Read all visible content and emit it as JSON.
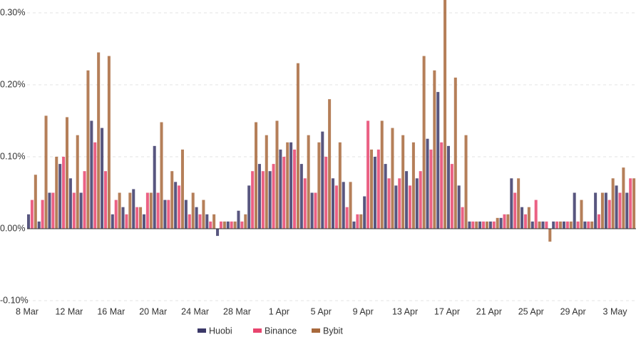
{
  "chart_data": {
    "type": "bar",
    "categories": [
      "8 Mar",
      null,
      null,
      null,
      "12 Mar",
      null,
      null,
      null,
      "16 Mar",
      null,
      null,
      null,
      "20 Mar",
      null,
      null,
      null,
      "24 Mar",
      null,
      null,
      null,
      "28 Mar",
      null,
      null,
      null,
      "1 Apr",
      null,
      null,
      null,
      "5 Apr",
      null,
      null,
      null,
      "9 Apr",
      null,
      null,
      null,
      "13 Apr",
      null,
      null,
      null,
      "17 Apr",
      null,
      null,
      null,
      "21 Apr",
      null,
      null,
      null,
      "25 Apr",
      null,
      null,
      null,
      "29 Apr",
      null,
      null,
      null,
      "3 May",
      null
    ],
    "series": [
      {
        "name": "Huobi",
        "color": "#3b3868",
        "values": [
          0.02,
          0.01,
          0.05,
          0.09,
          0.07,
          0.05,
          0.15,
          0.14,
          0.02,
          0.03,
          0.055,
          0.02,
          0.115,
          0.04,
          0.065,
          0.04,
          0.03,
          0.02,
          -0.01,
          0.01,
          0.025,
          0.06,
          0.09,
          0.08,
          0.11,
          0.12,
          0.09,
          0.05,
          0.135,
          0.07,
          0.065,
          0.01,
          0.045,
          0.1,
          0.09,
          0.06,
          0.08,
          0.07,
          0.125,
          0.19,
          0.115,
          0.06,
          0.01,
          0.01,
          0.01,
          0.015,
          0.07,
          0.03,
          0.01,
          0.01,
          0.01,
          0.01,
          0.05,
          0.01,
          0.05,
          0.05,
          0.06,
          0.05
        ]
      },
      {
        "name": "Binance",
        "color": "#e8456e",
        "values": [
          0.04,
          0.04,
          0.05,
          0.1,
          0.05,
          0.08,
          0.12,
          0.08,
          0.04,
          0.02,
          0.03,
          0.05,
          0.05,
          0.04,
          0.06,
          0.02,
          0.02,
          0.01,
          0.01,
          0.01,
          0.01,
          0.08,
          0.08,
          0.09,
          0.1,
          0.11,
          0.07,
          0.05,
          0.1,
          0.06,
          0.03,
          0.02,
          0.15,
          0.11,
          0.07,
          0.07,
          0.06,
          0.08,
          0.11,
          0.12,
          0.09,
          0.03,
          0.01,
          0.01,
          0.01,
          0.02,
          0.05,
          0.02,
          0.04,
          0.01,
          0.01,
          0.01,
          0.01,
          0.01,
          0.02,
          0.04,
          0.05,
          0.07
        ]
      },
      {
        "name": "Bybit",
        "color": "#a8693c",
        "values": [
          0.075,
          0.157,
          0.1,
          0.155,
          0.13,
          0.22,
          0.245,
          0.24,
          0.05,
          0.05,
          0.03,
          0.05,
          0.148,
          0.08,
          0.11,
          0.05,
          0.04,
          0.02,
          0.01,
          0.01,
          0.02,
          0.148,
          0.13,
          0.15,
          0.12,
          0.23,
          0.13,
          0.12,
          0.18,
          0.12,
          0.065,
          0.02,
          0.11,
          0.15,
          0.14,
          0.13,
          0.12,
          0.24,
          0.22,
          0.32,
          0.21,
          0.13,
          0.01,
          0.01,
          0.015,
          0.02,
          0.07,
          0.03,
          0.01,
          -0.018,
          0.01,
          0.01,
          0.04,
          0.01,
          0.05,
          0.07,
          0.085,
          0.07
        ]
      }
    ],
    "ylim": [
      -0.1,
      0.3
    ],
    "yticks": [
      {
        "value": -0.1,
        "label": "-0.10%"
      },
      {
        "value": 0,
        "label": "0.00%"
      },
      {
        "value": 0.1,
        "label": "0.10%"
      },
      {
        "value": 0.2,
        "label": "0.20%"
      },
      {
        "value": 0.3,
        "label": "0.30%"
      }
    ],
    "grid": true,
    "legend": "bottom"
  }
}
